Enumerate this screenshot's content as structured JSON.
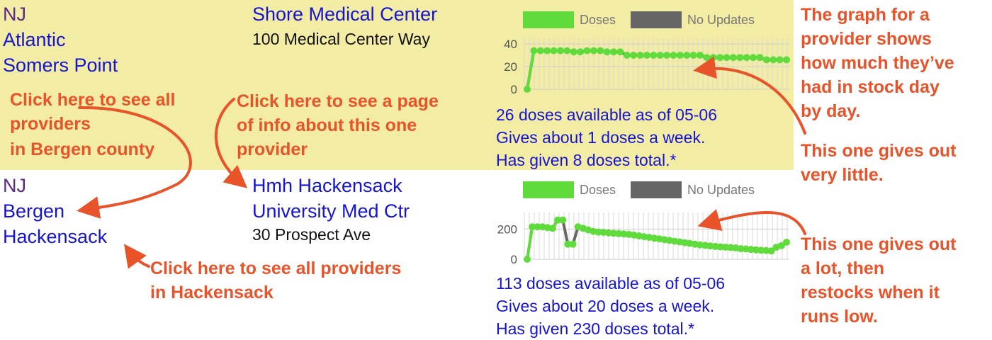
{
  "colors": {
    "doses": "#5fdc3c",
    "no_updates": "#666666",
    "link": "#1414d2",
    "note": "#e8532a",
    "band": "#f3eca4"
  },
  "providers": [
    {
      "state": "NJ",
      "county": "Atlantic",
      "city": "Somers Point",
      "name": "Shore Medical Center",
      "address": "100 Medical Center Way",
      "available": "26 doses available as of 05-06",
      "rate": "Gives about 1 doses a week.",
      "total": "Has given 8 doses total.*",
      "legend": {
        "doses": "Doses",
        "no_updates": "No Updates"
      },
      "chart_data": {
        "type": "line",
        "y_ticks": [
          "0",
          "20",
          "40"
        ],
        "ylim": [
          0,
          45
        ],
        "series": [
          {
            "name": "Doses",
            "values": [
              0,
              34,
              34,
              34,
              34,
              34,
              34,
              33,
              33,
              34,
              34,
              34,
              33,
              33,
              33,
              30,
              30,
              30,
              30,
              30,
              30,
              30,
              30,
              30,
              30,
              30,
              30,
              28,
              28,
              28,
              28,
              28,
              28,
              28,
              28,
              28,
              26,
              26,
              26,
              26
            ]
          },
          {
            "name": "No Updates",
            "values": [
              0,
              34,
              34,
              34,
              34,
              34,
              34,
              33,
              33,
              34,
              34,
              34,
              33,
              33,
              33,
              30,
              30,
              30,
              30,
              30,
              30,
              30,
              30,
              30,
              30,
              30,
              30,
              28,
              28,
              28,
              28,
              28,
              28,
              28,
              28,
              28,
              26,
              26,
              26,
              26
            ]
          }
        ]
      }
    },
    {
      "state": "NJ",
      "county": "Bergen",
      "city": "Hackensack",
      "name_line1": "Hmh Hackensack",
      "name_line2": "University Med Ctr",
      "address": "30 Prospect Ave",
      "available": "113 doses available as of 05-06",
      "rate": "Gives about 20 doses a week.",
      "total": "Has given 230 doses total.*",
      "legend": {
        "doses": "Doses",
        "no_updates": "No Updates"
      },
      "chart_data": {
        "type": "line",
        "y_ticks": [
          "0",
          "200"
        ],
        "ylim": [
          0,
          310
        ],
        "series": [
          {
            "name": "Doses",
            "values": [
              0,
              215,
              215,
              215,
              210,
              205,
              260,
              260,
              100,
              100,
              215,
              205,
              195,
              185,
              180,
              178,
              175,
              172,
              170,
              168,
              165,
              160,
              155,
              150,
              145,
              140,
              135,
              130,
              125,
              120,
              115,
              110,
              105,
              100,
              95,
              92,
              88,
              85,
              82,
              80,
              78,
              75,
              70,
              68,
              65,
              62,
              60,
              58,
              55,
              80,
              90,
              113
            ]
          },
          {
            "name": "No Updates",
            "values": [
              0,
              215,
              215,
              215,
              210,
              205,
              260,
              260,
              100,
              100,
              215,
              205,
              195,
              185,
              180,
              178,
              175,
              172,
              170,
              168,
              165,
              160,
              155,
              150,
              145,
              140,
              135,
              130,
              125,
              120,
              115,
              110,
              105,
              100,
              95,
              92,
              88,
              85,
              82,
              80,
              78,
              75,
              70,
              68,
              65,
              62,
              60,
              58,
              55,
              80,
              90,
              113
            ]
          }
        ]
      }
    }
  ],
  "annotations": {
    "county_note_l1": "Click here to see all",
    "county_note_l2": "providers",
    "county_note_l3": "in Bergen county",
    "provider_note_l1": "Click here to see a page",
    "provider_note_l2": "of info about this one",
    "provider_note_l3": "provider",
    "city_note_l1": "Click here to see all providers",
    "city_note_l2": "in Hackensack",
    "graph_note_l1": "The  graph for a",
    "graph_note_l2": "provider shows",
    "graph_note_l3": "how much they’ve",
    "graph_note_l4": "had in stock day",
    "graph_note_l5": "by day.",
    "little_note_l1": "This one gives out",
    "little_note_l2": "very little.",
    "lot_note_l1": "This one gives out",
    "lot_note_l2": "a lot, then",
    "lot_note_l3": "restocks when it",
    "lot_note_l4": "runs low."
  }
}
